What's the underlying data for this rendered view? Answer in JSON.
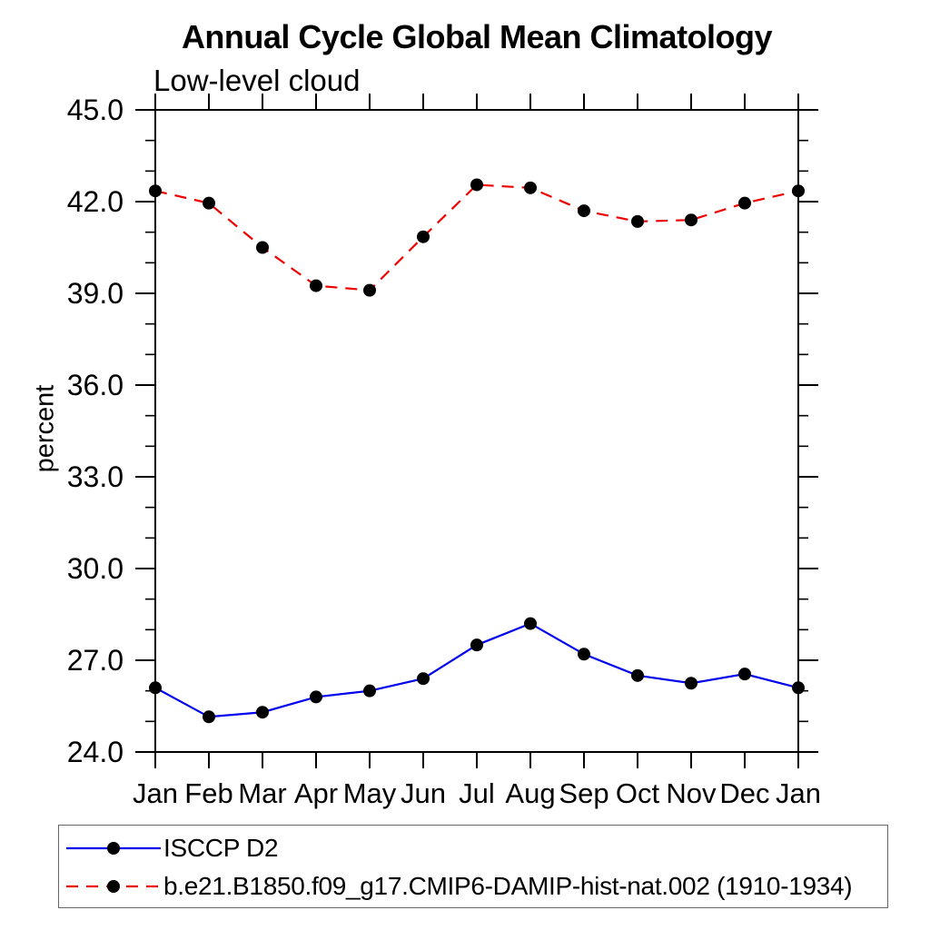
{
  "chart_data": {
    "type": "line",
    "title": "Annual Cycle Global Mean Climatology",
    "subtitle": "Low-level cloud",
    "ylabel": "percent",
    "xlabel": "",
    "categories": [
      "Jan",
      "Feb",
      "Mar",
      "Apr",
      "May",
      "Jun",
      "Jul",
      "Aug",
      "Sep",
      "Oct",
      "Nov",
      "Dec",
      "Jan"
    ],
    "ylim": [
      24.0,
      45.0
    ],
    "ytick_major_interval": 3.0,
    "ytick_minor_interval": 1.0,
    "ytick_labels": [
      "24.0",
      "27.0",
      "30.0",
      "33.0",
      "36.0",
      "39.0",
      "42.0",
      "45.0"
    ],
    "grid": false,
    "legend_position": "bottom-left-box",
    "axis_color": "#000000",
    "marker": "filled-circle",
    "marker_color": "#000000",
    "series": [
      {
        "name": "ISCCP D2",
        "color": "#0000ee",
        "line_style": "solid",
        "values": [
          26.1,
          25.15,
          25.3,
          25.8,
          26.0,
          26.4,
          27.5,
          28.2,
          27.2,
          26.5,
          26.25,
          26.55,
          26.1
        ]
      },
      {
        "name": "b.e21.B1850.f09_g17.CMIP6-DAMIP-hist-nat.002 (1910-1934)",
        "color": "#ee0000",
        "line_style": "dashed",
        "values": [
          42.35,
          41.95,
          40.5,
          39.25,
          39.1,
          40.85,
          42.55,
          42.45,
          41.7,
          41.35,
          41.4,
          41.95,
          42.35
        ]
      }
    ]
  }
}
